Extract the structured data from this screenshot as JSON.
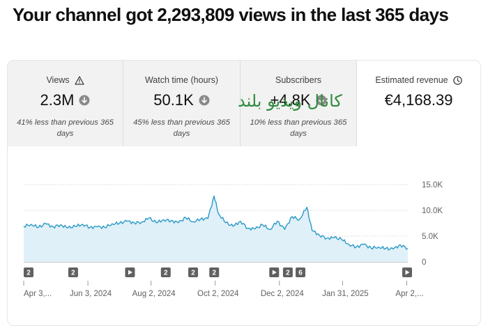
{
  "headline": "Your channel got 2,293,809 views in the last 365 days",
  "overlay_text": "كانال ويديو بلند",
  "stats": [
    {
      "title": "Views",
      "title_icon": "warning-icon",
      "value": "2.3M",
      "trend_icon": "arrow-down-circle-icon",
      "note": "41% less than previous 365 days"
    },
    {
      "title": "Watch time (hours)",
      "title_icon": "",
      "value": "50.1K",
      "trend_icon": "arrow-down-circle-icon",
      "note": "45% less than previous 365 days"
    },
    {
      "title": "Subscribers",
      "title_icon": "",
      "value": "+4.8K",
      "trend_icon": "arrow-down-circle-icon",
      "note": "10% less than previous 365 days"
    },
    {
      "title": "Estimated revenue",
      "title_icon": "clock-icon",
      "value": "€4,168.39",
      "trend_icon": "",
      "note": ""
    }
  ],
  "colors": {
    "line": "#2a99c6",
    "area": "#dff0f8",
    "grid": "#dddddd",
    "axis_text": "#606060",
    "marker_bg": "#606060"
  },
  "chart_data": {
    "type": "area",
    "title": "",
    "xlabel": "",
    "ylabel": "",
    "ylim": [
      0,
      15000
    ],
    "y_ticks": [
      "0",
      "5.0K",
      "10.0K",
      "15.0K"
    ],
    "y_tick_values": [
      0,
      5000,
      10000,
      15000
    ],
    "x_start": "2024-04-03",
    "x_end": "2025-04-03",
    "x_ticks": [
      {
        "label": "Apr 3,...",
        "date": "2024-04-03"
      },
      {
        "label": "Jun 3, 2024",
        "date": "2024-06-03"
      },
      {
        "label": "Aug 2, 2024",
        "date": "2024-08-02"
      },
      {
        "label": "Oct 2, 2024",
        "date": "2024-10-02"
      },
      {
        "label": "Dec 2, 2024",
        "date": "2024-12-02"
      },
      {
        "label": "Jan 31, 2025",
        "date": "2025-01-31"
      },
      {
        "label": "Apr 2,...",
        "date": "2025-04-02"
      }
    ],
    "events": [
      {
        "date": "2024-04-04",
        "label": "2",
        "kind": "count"
      },
      {
        "date": "2024-05-20",
        "label": "2",
        "kind": "count"
      },
      {
        "date": "2024-07-13",
        "label": "",
        "kind": "play"
      },
      {
        "date": "2024-08-16",
        "label": "2",
        "kind": "count"
      },
      {
        "date": "2024-09-11",
        "label": "2",
        "kind": "count"
      },
      {
        "date": "2024-10-01",
        "label": "2",
        "kind": "count"
      },
      {
        "date": "2024-11-27",
        "label": "",
        "kind": "play"
      },
      {
        "date": "2024-12-10",
        "label": "2",
        "kind": "count"
      },
      {
        "date": "2024-12-22",
        "label": "6",
        "kind": "count"
      },
      {
        "date": "2025-04-03",
        "label": "",
        "kind": "play"
      }
    ],
    "series": [
      {
        "points": [
          [
            "2024-04-03",
            6900
          ],
          [
            "2024-04-10",
            7300
          ],
          [
            "2024-04-17",
            6700
          ],
          [
            "2024-04-24",
            7400
          ],
          [
            "2024-05-01",
            6800
          ],
          [
            "2024-05-08",
            7200
          ],
          [
            "2024-05-15",
            6600
          ],
          [
            "2024-05-22",
            6900
          ],
          [
            "2024-05-29",
            7300
          ],
          [
            "2024-06-05",
            6700
          ],
          [
            "2024-06-12",
            6800
          ],
          [
            "2024-06-19",
            6700
          ],
          [
            "2024-06-26",
            7400
          ],
          [
            "2024-07-03",
            7500
          ],
          [
            "2024-07-10",
            7900
          ],
          [
            "2024-07-17",
            7600
          ],
          [
            "2024-07-24",
            7700
          ],
          [
            "2024-07-31",
            8500
          ],
          [
            "2024-08-07",
            7600
          ],
          [
            "2024-08-14",
            8200
          ],
          [
            "2024-08-21",
            8000
          ],
          [
            "2024-08-28",
            7600
          ],
          [
            "2024-09-04",
            8600
          ],
          [
            "2024-09-11",
            7800
          ],
          [
            "2024-09-18",
            8300
          ],
          [
            "2024-09-25",
            8400
          ],
          [
            "2024-10-01",
            12800
          ],
          [
            "2024-10-05",
            9400
          ],
          [
            "2024-10-12",
            7600
          ],
          [
            "2024-10-19",
            6900
          ],
          [
            "2024-10-26",
            7900
          ],
          [
            "2024-11-02",
            6500
          ],
          [
            "2024-11-09",
            6400
          ],
          [
            "2024-11-16",
            7200
          ],
          [
            "2024-11-23",
            6300
          ],
          [
            "2024-11-30",
            7900
          ],
          [
            "2024-12-07",
            6300
          ],
          [
            "2024-12-14",
            8800
          ],
          [
            "2024-12-21",
            8200
          ],
          [
            "2024-12-28",
            10600
          ],
          [
            "2025-01-02",
            6100
          ],
          [
            "2025-01-09",
            5200
          ],
          [
            "2025-01-16",
            4600
          ],
          [
            "2025-01-23",
            4700
          ],
          [
            "2025-01-30",
            4400
          ],
          [
            "2025-02-06",
            3400
          ],
          [
            "2025-02-13",
            2900
          ],
          [
            "2025-02-20",
            3400
          ],
          [
            "2025-02-27",
            2700
          ],
          [
            "2025-03-06",
            2900
          ],
          [
            "2025-03-13",
            2600
          ],
          [
            "2025-03-20",
            2500
          ],
          [
            "2025-03-27",
            3300
          ],
          [
            "2025-04-03",
            2600
          ]
        ]
      }
    ]
  }
}
